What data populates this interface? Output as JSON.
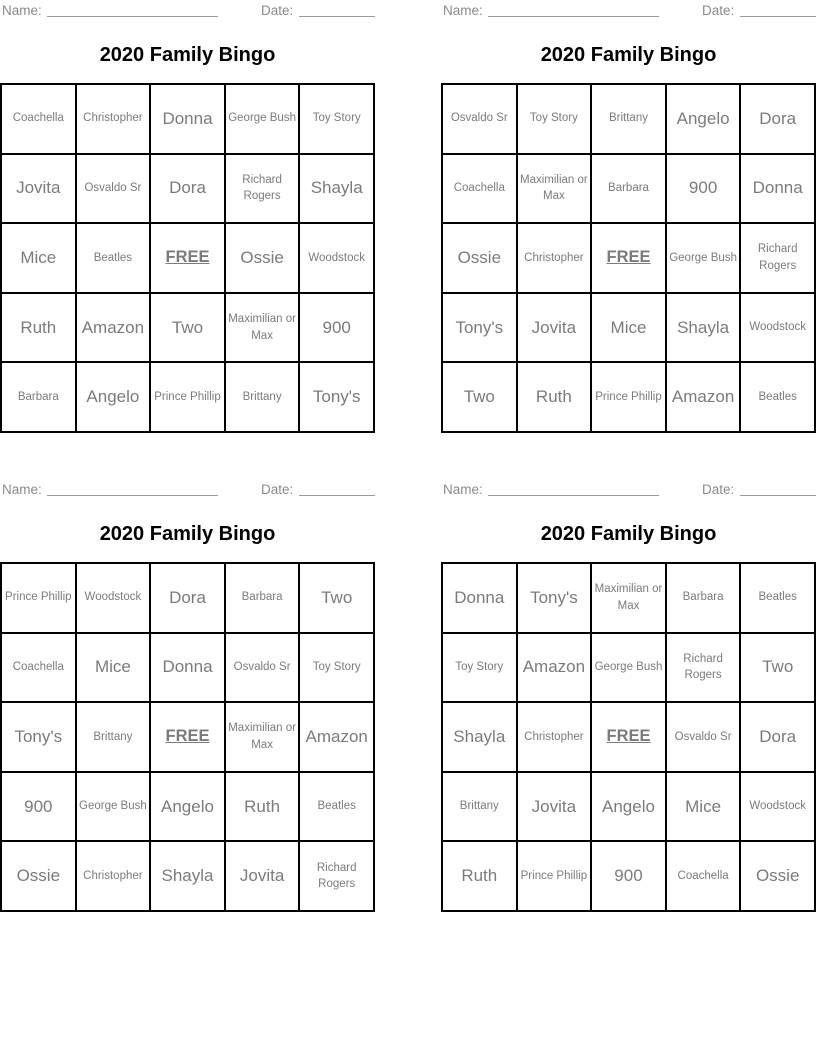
{
  "labels": {
    "name": "Name:",
    "date": "Date:"
  },
  "free_text": "FREE",
  "colors": {
    "background": "#ffffff",
    "title_text": "#000000",
    "label_text": "#8a8a8a",
    "cell_text": "#7b7b7b",
    "grid_border": "#000000",
    "blank_line": "#9a9a9a"
  },
  "cards": [
    {
      "position": "top-left",
      "title": "2020 Family Bingo",
      "grid": [
        [
          "Coachella",
          "Christopher",
          "Donna",
          "George Bush",
          "Toy Story"
        ],
        [
          "Jovita",
          "Osvaldo Sr",
          "Dora",
          "Richard Rogers",
          "Shayla"
        ],
        [
          "Mice",
          "Beatles",
          "FREE",
          "Ossie",
          "Woodstock"
        ],
        [
          "Ruth",
          "Amazon",
          "Two",
          "Maximilian or Max",
          "900"
        ],
        [
          "Barbara",
          "Angelo",
          "Prince Phillip",
          "Brittany",
          "Tony's"
        ]
      ]
    },
    {
      "position": "top-right",
      "title": "2020 Family Bingo",
      "grid": [
        [
          "Osvaldo Sr",
          "Toy Story",
          "Brittany",
          "Angelo",
          "Dora"
        ],
        [
          "Coachella",
          "Maximilian or Max",
          "Barbara",
          "900",
          "Donna"
        ],
        [
          "Ossie",
          "Christopher",
          "FREE",
          "George Bush",
          "Richard Rogers"
        ],
        [
          "Tony's",
          "Jovita",
          "Mice",
          "Shayla",
          "Woodstock"
        ],
        [
          "Two",
          "Ruth",
          "Prince Phillip",
          "Amazon",
          "Beatles"
        ]
      ]
    },
    {
      "position": "bottom-left",
      "title": "2020 Family Bingo",
      "grid": [
        [
          "Prince Phillip",
          "Woodstock",
          "Dora",
          "Barbara",
          "Two"
        ],
        [
          "Coachella",
          "Mice",
          "Donna",
          "Osvaldo Sr",
          "Toy Story"
        ],
        [
          "Tony's",
          "Brittany",
          "FREE",
          "Maximilian or Max",
          "Amazon"
        ],
        [
          "900",
          "George Bush",
          "Angelo",
          "Ruth",
          "Beatles"
        ],
        [
          "Ossie",
          "Christopher",
          "Shayla",
          "Jovita",
          "Richard Rogers"
        ]
      ]
    },
    {
      "position": "bottom-right",
      "title": "2020 Family Bingo",
      "grid": [
        [
          "Donna",
          "Tony's",
          "Maximilian or Max",
          "Barbara",
          "Beatles"
        ],
        [
          "Toy Story",
          "Amazon",
          "George Bush",
          "Richard Rogers",
          "Two"
        ],
        [
          "Shayla",
          "Christopher",
          "FREE",
          "Osvaldo Sr",
          "Dora"
        ],
        [
          "Brittany",
          "Jovita",
          "Angelo",
          "Mice",
          "Woodstock"
        ],
        [
          "Ruth",
          "Prince Phillip",
          "900",
          "Coachella",
          "Ossie"
        ]
      ]
    }
  ]
}
